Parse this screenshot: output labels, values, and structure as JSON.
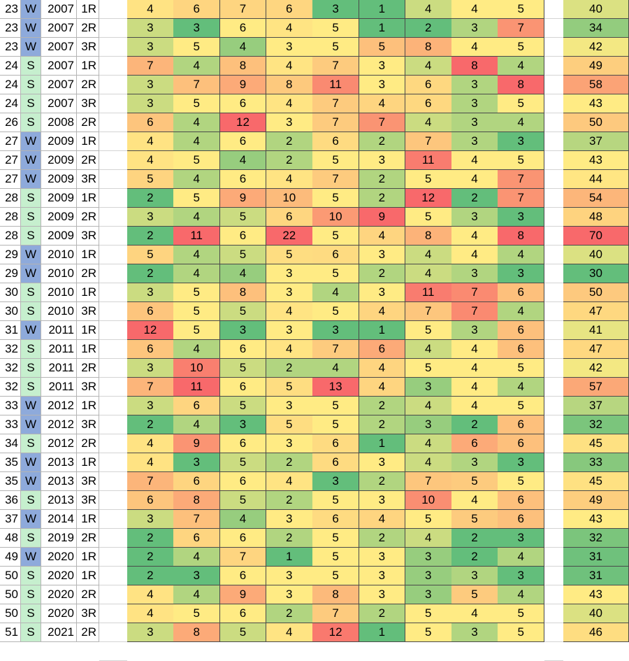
{
  "colors": {
    "season_w": "#8eaadb",
    "season_s": "#c6efce",
    "heat_low": "#63be7b",
    "heat_mid": "#ffeb84",
    "heat_high": "#f8696b",
    "grid": "#d4d4d4",
    "cell_border": "#4a4a4a"
  },
  "rows": [
    {
      "id": "23",
      "season": "W",
      "year": "2007",
      "round": "1R",
      "values": [
        4,
        6,
        7,
        6,
        3,
        1,
        4,
        4,
        5
      ],
      "total": 40
    },
    {
      "id": "23",
      "season": "W",
      "year": "2007",
      "round": "2R",
      "values": [
        3,
        3,
        6,
        4,
        5,
        1,
        2,
        3,
        7
      ],
      "total": 34
    },
    {
      "id": "23",
      "season": "W",
      "year": "2007",
      "round": "3R",
      "values": [
        3,
        5,
        4,
        3,
        5,
        5,
        8,
        4,
        5
      ],
      "total": 42
    },
    {
      "id": "24",
      "season": "S",
      "year": "2007",
      "round": "1R",
      "values": [
        7,
        4,
        8,
        4,
        7,
        3,
        4,
        8,
        4
      ],
      "total": 49
    },
    {
      "id": "24",
      "season": "S",
      "year": "2007",
      "round": "2R",
      "values": [
        3,
        7,
        9,
        8,
        11,
        3,
        6,
        3,
        8
      ],
      "total": 58
    },
    {
      "id": "24",
      "season": "S",
      "year": "2007",
      "round": "3R",
      "values": [
        3,
        5,
        6,
        4,
        7,
        4,
        6,
        3,
        5
      ],
      "total": 43
    },
    {
      "id": "26",
      "season": "S",
      "year": "2008",
      "round": "2R",
      "values": [
        6,
        4,
        12,
        3,
        7,
        7,
        4,
        3,
        4
      ],
      "total": 50
    },
    {
      "id": "27",
      "season": "W",
      "year": "2009",
      "round": "1R",
      "values": [
        4,
        4,
        6,
        2,
        6,
        2,
        7,
        3,
        3
      ],
      "total": 37
    },
    {
      "id": "27",
      "season": "W",
      "year": "2009",
      "round": "2R",
      "values": [
        4,
        5,
        4,
        2,
        5,
        3,
        11,
        4,
        5
      ],
      "total": 43
    },
    {
      "id": "27",
      "season": "W",
      "year": "2009",
      "round": "3R",
      "values": [
        5,
        4,
        6,
        4,
        7,
        2,
        5,
        4,
        7
      ],
      "total": 44
    },
    {
      "id": "28",
      "season": "S",
      "year": "2009",
      "round": "1R",
      "values": [
        2,
        5,
        9,
        10,
        5,
        2,
        12,
        2,
        7
      ],
      "total": 54
    },
    {
      "id": "28",
      "season": "S",
      "year": "2009",
      "round": "2R",
      "values": [
        3,
        4,
        5,
        6,
        10,
        9,
        5,
        3,
        3
      ],
      "total": 48
    },
    {
      "id": "28",
      "season": "S",
      "year": "2009",
      "round": "3R",
      "values": [
        2,
        11,
        6,
        22,
        5,
        4,
        8,
        4,
        8
      ],
      "total": 70
    },
    {
      "id": "29",
      "season": "W",
      "year": "2010",
      "round": "1R",
      "values": [
        5,
        4,
        5,
        5,
        6,
        3,
        4,
        4,
        4
      ],
      "total": 40
    },
    {
      "id": "29",
      "season": "W",
      "year": "2010",
      "round": "2R",
      "values": [
        2,
        4,
        4,
        3,
        5,
        2,
        4,
        3,
        3
      ],
      "total": 30
    },
    {
      "id": "30",
      "season": "S",
      "year": "2010",
      "round": "1R",
      "values": [
        3,
        5,
        8,
        3,
        4,
        3,
        11,
        7,
        6
      ],
      "total": 50
    },
    {
      "id": "30",
      "season": "S",
      "year": "2010",
      "round": "3R",
      "values": [
        6,
        5,
        5,
        4,
        5,
        4,
        7,
        7,
        4
      ],
      "total": 47
    },
    {
      "id": "31",
      "season": "W",
      "year": "2011",
      "round": "1R",
      "values": [
        12,
        5,
        3,
        3,
        3,
        1,
        5,
        3,
        6
      ],
      "total": 41
    },
    {
      "id": "32",
      "season": "S",
      "year": "2011",
      "round": "1R",
      "values": [
        6,
        4,
        6,
        4,
        7,
        6,
        4,
        4,
        6
      ],
      "total": 47
    },
    {
      "id": "32",
      "season": "S",
      "year": "2011",
      "round": "2R",
      "values": [
        3,
        10,
        5,
        2,
        4,
        4,
        5,
        4,
        5
      ],
      "total": 42
    },
    {
      "id": "32",
      "season": "S",
      "year": "2011",
      "round": "3R",
      "values": [
        7,
        11,
        6,
        5,
        13,
        4,
        3,
        4,
        4
      ],
      "total": 57
    },
    {
      "id": "33",
      "season": "W",
      "year": "2012",
      "round": "1R",
      "values": [
        3,
        6,
        5,
        3,
        5,
        2,
        4,
        4,
        5
      ],
      "total": 37
    },
    {
      "id": "33",
      "season": "W",
      "year": "2012",
      "round": "3R",
      "values": [
        2,
        4,
        3,
        5,
        5,
        2,
        3,
        2,
        6
      ],
      "total": 32
    },
    {
      "id": "34",
      "season": "S",
      "year": "2012",
      "round": "2R",
      "values": [
        4,
        9,
        6,
        3,
        6,
        1,
        4,
        6,
        6
      ],
      "total": 45
    },
    {
      "id": "35",
      "season": "W",
      "year": "2013",
      "round": "1R",
      "values": [
        4,
        3,
        5,
        2,
        6,
        3,
        4,
        3,
        3
      ],
      "total": 33
    },
    {
      "id": "35",
      "season": "W",
      "year": "2013",
      "round": "3R",
      "values": [
        7,
        6,
        6,
        4,
        3,
        2,
        7,
        5,
        5
      ],
      "total": 45
    },
    {
      "id": "36",
      "season": "S",
      "year": "2013",
      "round": "3R",
      "values": [
        6,
        8,
        5,
        2,
        5,
        3,
        10,
        4,
        6
      ],
      "total": 49
    },
    {
      "id": "37",
      "season": "W",
      "year": "2014",
      "round": "1R",
      "values": [
        3,
        7,
        4,
        3,
        6,
        4,
        5,
        5,
        6
      ],
      "total": 43
    },
    {
      "id": "48",
      "season": "S",
      "year": "2019",
      "round": "2R",
      "values": [
        2,
        6,
        6,
        2,
        5,
        2,
        4,
        2,
        3
      ],
      "total": 32
    },
    {
      "id": "49",
      "season": "W",
      "year": "2020",
      "round": "1R",
      "values": [
        2,
        4,
        7,
        1,
        5,
        3,
        3,
        2,
        4
      ],
      "total": 31
    },
    {
      "id": "50",
      "season": "S",
      "year": "2020",
      "round": "1R",
      "values": [
        2,
        3,
        6,
        3,
        5,
        3,
        3,
        3,
        3
      ],
      "total": 31
    },
    {
      "id": "50",
      "season": "S",
      "year": "2020",
      "round": "2R",
      "values": [
        4,
        4,
        9,
        3,
        8,
        3,
        3,
        5,
        4
      ],
      "total": 43
    },
    {
      "id": "50",
      "season": "S",
      "year": "2020",
      "round": "3R",
      "values": [
        4,
        5,
        6,
        2,
        7,
        2,
        5,
        4,
        5
      ],
      "total": 40
    },
    {
      "id": "51",
      "season": "S",
      "year": "2021",
      "round": "2R",
      "values": [
        3,
        8,
        5,
        4,
        12,
        1,
        5,
        3,
        5
      ],
      "total": 46
    }
  ]
}
